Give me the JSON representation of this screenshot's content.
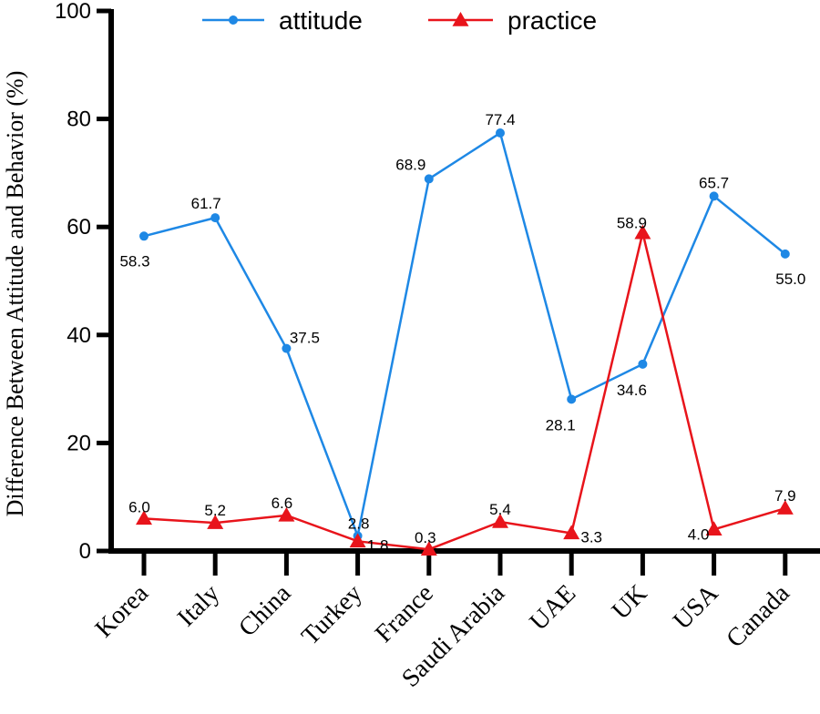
{
  "chart_data": {
    "type": "line",
    "ylabel": "Difference Between Attitude and Behavior (%)",
    "ylim": [
      0,
      100
    ],
    "yticks": [
      0,
      20,
      40,
      60,
      80,
      100
    ],
    "categories": [
      "Korea",
      "Italy",
      "China",
      "Turkey",
      "France",
      "Saudi Arabia",
      "UAE",
      "UK",
      "USA",
      "Canada"
    ],
    "legend_position": "top",
    "series": [
      {
        "name": "attitude",
        "color": "#1e88e5",
        "marker": "circle",
        "values": [
          58.3,
          61.7,
          37.5,
          2.8,
          68.9,
          77.4,
          28.1,
          34.6,
          65.7,
          55.0
        ],
        "labels": [
          "58.3",
          "61.7",
          "37.5",
          "2.8",
          "68.9",
          "77.4",
          "28.1",
          "34.6",
          "65.7",
          "55.0"
        ]
      },
      {
        "name": "practice",
        "color": "#e8141b",
        "marker": "triangle",
        "values": [
          6.0,
          5.2,
          6.6,
          1.8,
          0.3,
          5.4,
          3.3,
          58.9,
          4.0,
          7.9
        ],
        "labels": [
          "6.0",
          "5.2",
          "6.6",
          "1.8",
          "0.3",
          "5.4",
          "3.3",
          "58.9",
          "4.0",
          "7.9"
        ]
      }
    ]
  }
}
